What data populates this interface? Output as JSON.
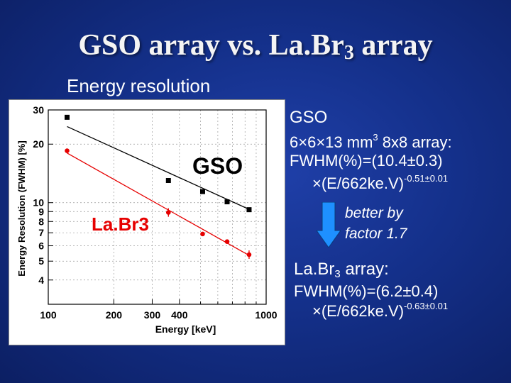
{
  "slide": {
    "title_main": "GSO array vs. La.Br",
    "title_sub": "3",
    "title_tail": " array",
    "subtitle": "Energy resolution"
  },
  "right_panel": {
    "gso_heading": "GSO",
    "gso_dims": "6×6×13 mm",
    "gso_dims_sup": "3",
    "gso_array": " 8x8 array:",
    "gso_fwhm": "FWHM(%)=(10.4±0.3)",
    "gso_energy": "×(E/662ke.V)",
    "gso_exp": "-0.51±0.01",
    "arrow_text_1": "better by",
    "arrow_text_2": "factor 1.7",
    "labr_heading_main": "La.Br",
    "labr_heading_sub": "3",
    "labr_heading_tail": " array:",
    "labr_fwhm": "FWHM(%)=(6.2±0.4)",
    "labr_energy": "×(E/662ke.V)",
    "labr_exp": "-0.63±0.01"
  },
  "colors": {
    "gso": "#000000",
    "labr": "#e60000",
    "arrow_fill": "#1e90ff",
    "text": "#ffffff"
  },
  "chart_data": {
    "type": "scatter",
    "xscale": "log",
    "yscale": "log",
    "xlabel": "Energy [keV]",
    "ylabel": "Energy Resolution (FWHM) [%]",
    "xlim": [
      100,
      1000
    ],
    "ylim": [
      3,
      30
    ],
    "grid": true,
    "x_tick_labels": [
      "100",
      "200",
      "300",
      "400",
      "1000"
    ],
    "x_tick_values": [
      100,
      200,
      300,
      400,
      1000
    ],
    "x_minor_ticks": [
      500,
      600,
      700,
      800,
      900
    ],
    "y_tick_labels": [
      "4",
      "5",
      "6",
      "7",
      "8",
      "9",
      "10",
      "20",
      "30"
    ],
    "y_tick_values": [
      4,
      5,
      6,
      7,
      8,
      9,
      10,
      20,
      30
    ],
    "series": [
      {
        "name": "GSO",
        "marker": "square",
        "points": [
          [
            122,
            27.5
          ],
          [
            356,
            13.0
          ],
          [
            511,
            11.4
          ],
          [
            662,
            10.1
          ],
          [
            835,
            9.2
          ]
        ],
        "fit": {
          "a": 10.4,
          "b": -0.51,
          "x_range": [
            122,
            835
          ]
        }
      },
      {
        "name": "LaBr3",
        "marker": "circle",
        "points": [
          [
            122,
            18.5
          ],
          [
            356,
            8.9
          ],
          [
            511,
            6.9
          ],
          [
            662,
            6.3
          ],
          [
            835,
            5.4
          ]
        ],
        "fit": {
          "a": 6.2,
          "b": -0.63,
          "x_range": [
            122,
            835
          ]
        }
      }
    ],
    "annotations": [
      {
        "text": "GSO",
        "series": "GSO"
      },
      {
        "text": "La.Br3",
        "series": "LaBr3"
      }
    ]
  }
}
